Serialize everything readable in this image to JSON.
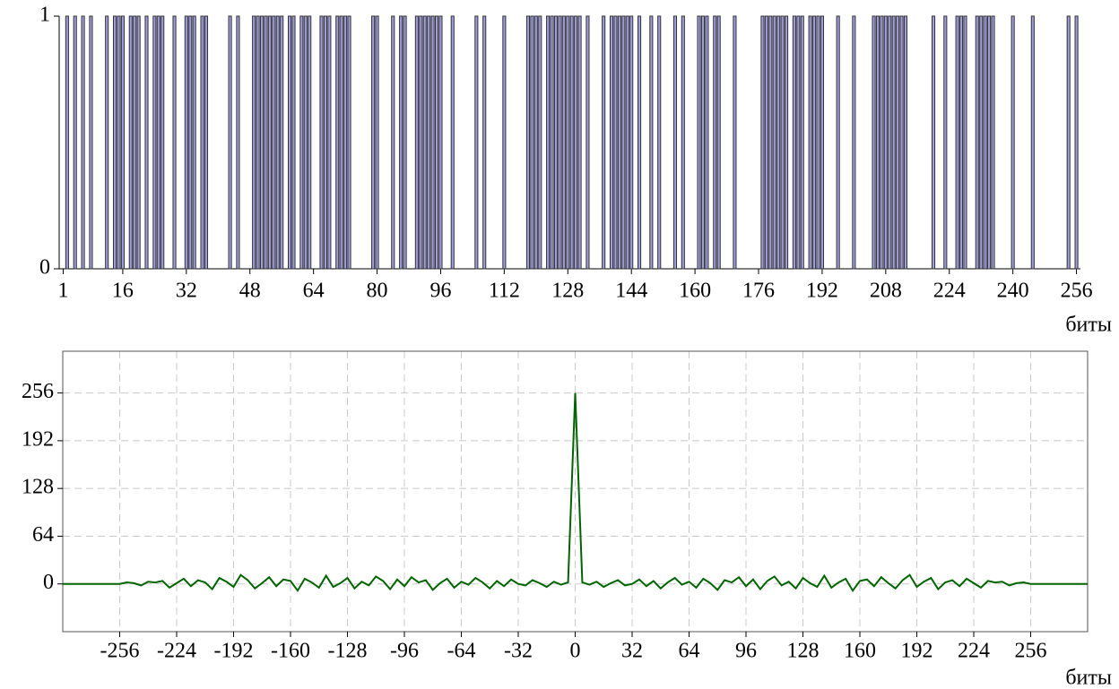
{
  "chart_data": [
    {
      "type": "bar",
      "color": "#9f9ce0",
      "edge_color": "#333333",
      "xlabel": "биты",
      "grid": false,
      "xlim": [
        0,
        257
      ],
      "ylim": [
        0,
        1
      ],
      "yticks": [
        0,
        1
      ],
      "xticks": [
        1,
        16,
        32,
        48,
        64,
        80,
        96,
        112,
        128,
        144,
        160,
        176,
        192,
        208,
        224,
        240,
        256
      ],
      "x": [
        1,
        2,
        3,
        4,
        5,
        6,
        7,
        8,
        9,
        10,
        11,
        12,
        13,
        14,
        15,
        16,
        17,
        18,
        19,
        20,
        21,
        22,
        23,
        24,
        25,
        26,
        27,
        28,
        29,
        30,
        31,
        32,
        33,
        34,
        35,
        36,
        37,
        38,
        39,
        40,
        41,
        42,
        43,
        44,
        45,
        46,
        47,
        48,
        49,
        50,
        51,
        52,
        53,
        54,
        55,
        56,
        57,
        58,
        59,
        60,
        61,
        62,
        63,
        64,
        65,
        66,
        67,
        68,
        69,
        70,
        71,
        72,
        73,
        74,
        75,
        76,
        77,
        78,
        79,
        80,
        81,
        82,
        83,
        84,
        85,
        86,
        87,
        88,
        89,
        90,
        91,
        92,
        93,
        94,
        95,
        96,
        97,
        98,
        99,
        100,
        101,
        102,
        103,
        104,
        105,
        106,
        107,
        108,
        109,
        110,
        111,
        112,
        113,
        114,
        115,
        116,
        117,
        118,
        119,
        120,
        121,
        122,
        123,
        124,
        125,
        126,
        127,
        128,
        129,
        130,
        131,
        132,
        133,
        134,
        135,
        136,
        137,
        138,
        139,
        140,
        141,
        142,
        143,
        144,
        145,
        146,
        147,
        148,
        149,
        150,
        151,
        152,
        153,
        154,
        155,
        156,
        157,
        158,
        159,
        160,
        161,
        162,
        163,
        164,
        165,
        166,
        167,
        168,
        169,
        170,
        171,
        172,
        173,
        174,
        175,
        176,
        177,
        178,
        179,
        180,
        181,
        182,
        183,
        184,
        185,
        186,
        187,
        188,
        189,
        190,
        191,
        192,
        193,
        194,
        195,
        196,
        197,
        198,
        199,
        200,
        201,
        202,
        203,
        204,
        205,
        206,
        207,
        208,
        209,
        210,
        211,
        212,
        213,
        214,
        215,
        216,
        217,
        218,
        219,
        220,
        221,
        222,
        223,
        224,
        225,
        226,
        227,
        228,
        229,
        230,
        231,
        232,
        233,
        234,
        235,
        236,
        237,
        238,
        239,
        240,
        241,
        242,
        243,
        244,
        245,
        246,
        247,
        248,
        249,
        250,
        251,
        252,
        253,
        254,
        255,
        256
      ],
      "values": [
        0,
        1,
        0,
        1,
        0,
        1,
        0,
        1,
        0,
        0,
        0,
        1,
        0,
        1,
        1,
        1,
        0,
        1,
        1,
        1,
        0,
        1,
        0,
        1,
        1,
        1,
        0,
        0,
        1,
        0,
        0,
        1,
        1,
        1,
        0,
        1,
        1,
        0,
        0,
        0,
        0,
        0,
        1,
        0,
        1,
        0,
        0,
        0,
        1,
        1,
        1,
        1,
        1,
        1,
        1,
        1,
        0,
        1,
        1,
        0,
        1,
        1,
        1,
        0,
        0,
        1,
        1,
        1,
        0,
        1,
        1,
        1,
        1,
        0,
        0,
        0,
        0,
        0,
        1,
        1,
        0,
        0,
        0,
        1,
        0,
        1,
        1,
        0,
        0,
        1,
        1,
        1,
        1,
        1,
        1,
        1,
        0,
        0,
        1,
        0,
        0,
        0,
        0,
        0,
        1,
        0,
        1,
        0,
        0,
        0,
        0,
        1,
        0,
        0,
        0,
        0,
        0,
        1,
        1,
        1,
        1,
        0,
        1,
        1,
        1,
        1,
        1,
        1,
        1,
        1,
        1,
        0,
        1,
        0,
        0,
        0,
        1,
        0,
        1,
        1,
        1,
        1,
        1,
        1,
        0,
        1,
        0,
        0,
        1,
        0,
        1,
        0,
        0,
        0,
        1,
        0,
        1,
        0,
        0,
        0,
        1,
        1,
        1,
        0,
        1,
        1,
        0,
        0,
        0,
        1,
        0,
        0,
        0,
        0,
        0,
        0,
        1,
        1,
        1,
        1,
        1,
        1,
        1,
        0,
        1,
        1,
        1,
        0,
        1,
        1,
        1,
        1,
        0,
        0,
        0,
        1,
        0,
        0,
        0,
        1,
        0,
        0,
        0,
        0,
        1,
        1,
        1,
        1,
        1,
        1,
        1,
        1,
        1,
        0,
        0,
        0,
        0,
        0,
        0,
        1,
        0,
        0,
        1,
        0,
        0,
        1,
        1,
        1,
        0,
        0,
        1,
        1,
        1,
        1,
        1,
        0,
        0,
        0,
        0,
        1,
        0,
        0,
        0,
        0,
        1,
        0,
        0,
        0,
        0,
        0,
        0,
        0,
        0,
        1,
        0,
        1
      ]
    },
    {
      "type": "line",
      "color": "#006400",
      "xlabel": "биты",
      "grid": true,
      "xlim": [
        -288,
        288
      ],
      "ylim": [
        -64,
        312
      ],
      "xticks": [
        -256,
        -224,
        -192,
        -160,
        -128,
        -96,
        -64,
        -32,
        0,
        32,
        64,
        96,
        128,
        160,
        192,
        224,
        256
      ],
      "yticks": [
        0,
        64,
        128,
        192,
        256
      ],
      "x": [
        -288,
        -256,
        -252,
        -248,
        -244,
        -240,
        -236,
        -232,
        -228,
        -224,
        -220,
        -216,
        -212,
        -208,
        -204,
        -200,
        -196,
        -192,
        -188,
        -184,
        -180,
        -176,
        -172,
        -168,
        -164,
        -160,
        -156,
        -152,
        -148,
        -144,
        -140,
        -136,
        -132,
        -128,
        -124,
        -120,
        -116,
        -112,
        -108,
        -104,
        -100,
        -96,
        -92,
        -88,
        -84,
        -80,
        -76,
        -72,
        -68,
        -64,
        -60,
        -56,
        -52,
        -48,
        -44,
        -40,
        -36,
        -32,
        -28,
        -24,
        -20,
        -16,
        -12,
        -8,
        -4,
        0,
        4,
        8,
        12,
        16,
        20,
        24,
        28,
        32,
        36,
        40,
        44,
        48,
        52,
        56,
        60,
        64,
        68,
        72,
        76,
        80,
        84,
        88,
        92,
        96,
        100,
        104,
        108,
        112,
        116,
        120,
        124,
        128,
        132,
        136,
        140,
        144,
        148,
        152,
        156,
        160,
        164,
        168,
        172,
        176,
        180,
        184,
        188,
        192,
        196,
        200,
        204,
        208,
        212,
        216,
        220,
        224,
        228,
        232,
        236,
        240,
        244,
        248,
        252,
        256,
        288
      ],
      "values": [
        0,
        0,
        2,
        1,
        -2,
        3,
        2,
        4,
        -5,
        1,
        7,
        -3,
        5,
        2,
        -7,
        8,
        3,
        -4,
        12,
        5,
        -6,
        1,
        9,
        -3,
        6,
        4,
        -9,
        7,
        2,
        -5,
        11,
        -4,
        1,
        8,
        -6,
        3,
        -2,
        10,
        4,
        -7,
        6,
        -3,
        9,
        2,
        5,
        -8,
        1,
        7,
        -5,
        3,
        -1,
        8,
        2,
        -6,
        4,
        -3,
        6,
        0,
        -2,
        5,
        1,
        -4,
        3,
        -1,
        2,
        256,
        2,
        -1,
        3,
        -4,
        1,
        5,
        -2,
        0,
        6,
        -3,
        4,
        -6,
        2,
        8,
        -1,
        3,
        -5,
        7,
        1,
        -8,
        5,
        2,
        9,
        -3,
        6,
        -7,
        4,
        10,
        -2,
        3,
        -6,
        8,
        1,
        -4,
        11,
        -5,
        2,
        7,
        -9,
        4,
        6,
        -3,
        9,
        1,
        -6,
        5,
        12,
        -4,
        3,
        8,
        -7,
        2,
        5,
        -3,
        7,
        1,
        -5,
        4,
        2,
        3,
        -2,
        1,
        2,
        0,
        0
      ]
    }
  ]
}
